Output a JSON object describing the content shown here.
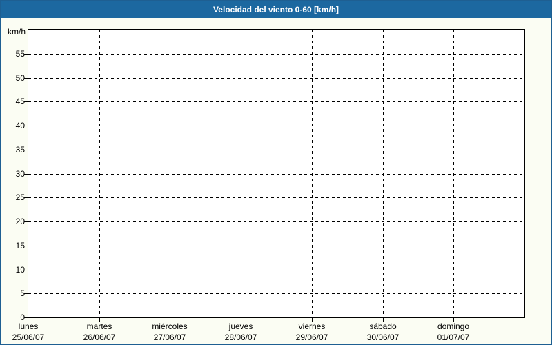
{
  "title_bar": {
    "text": "Velocidad del viento 0-60 [km/h]"
  },
  "colors": {
    "title_bar_background": "#1C68A0",
    "title_text": "#FFFFFF",
    "frame_border": "#1E5F92",
    "page_background": "#FBFDF3",
    "plot_background": "#FFFFFF",
    "grid_and_text": "#000000"
  },
  "chart_data": {
    "type": "line",
    "title": "Velocidad del viento 0-60 [km/h]",
    "ylabel": "km/h",
    "xlabel": "",
    "ylim": [
      0,
      60
    ],
    "ytick_interval": 5,
    "yticks": [
      0,
      5,
      10,
      15,
      20,
      25,
      30,
      35,
      40,
      45,
      50,
      55
    ],
    "x_categories": [
      {
        "day": "lunes",
        "date": "25/06/07"
      },
      {
        "day": "martes",
        "date": "26/06/07"
      },
      {
        "day": "miércoles",
        "date": "27/06/07"
      },
      {
        "day": "jueves",
        "date": "28/06/07"
      },
      {
        "day": "viernes",
        "date": "29/06/07"
      },
      {
        "day": "sábado",
        "date": "30/06/07"
      },
      {
        "day": "domingo",
        "date": "01/07/07"
      }
    ],
    "series": [],
    "grid": true,
    "grid_style": "dashed",
    "legend_position": "none"
  }
}
